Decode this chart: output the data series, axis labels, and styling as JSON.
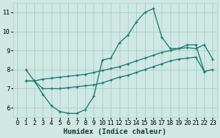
{
  "background_color": "#cfe8e3",
  "grid_color": "#aad0c8",
  "line_color": "#1a7a6e",
  "line1_x": [
    1,
    2,
    3,
    4,
    5,
    6,
    7,
    8,
    9,
    10,
    11,
    12,
    13,
    14,
    15,
    16,
    17,
    18,
    19,
    20,
    21,
    22
  ],
  "line1_y": [
    8.0,
    7.4,
    6.7,
    6.1,
    5.8,
    5.7,
    5.7,
    5.9,
    6.6,
    8.5,
    8.6,
    9.4,
    9.8,
    10.5,
    11.0,
    11.2,
    9.7,
    9.1,
    9.1,
    9.3,
    9.3,
    7.9
  ],
  "line2_x": [
    1,
    2,
    3,
    4,
    5,
    6,
    7,
    8,
    9,
    10,
    11,
    12,
    13,
    14,
    15,
    16,
    17,
    18,
    19,
    20,
    21,
    22,
    23
  ],
  "line2_y": [
    7.4,
    7.4,
    7.5,
    7.55,
    7.6,
    7.65,
    7.7,
    7.75,
    7.85,
    7.95,
    8.05,
    8.15,
    8.3,
    8.45,
    8.6,
    8.75,
    8.9,
    9.0,
    9.1,
    9.15,
    9.1,
    9.3,
    8.55
  ],
  "line3_x": [
    1,
    2,
    3,
    4,
    5,
    6,
    7,
    8,
    9,
    10,
    11,
    12,
    13,
    14,
    15,
    16,
    17,
    18,
    19,
    20,
    21,
    22,
    23
  ],
  "line3_y": [
    7.4,
    7.4,
    7.0,
    7.0,
    7.0,
    7.05,
    7.1,
    7.15,
    7.2,
    7.3,
    7.45,
    7.6,
    7.7,
    7.85,
    8.0,
    8.15,
    8.3,
    8.45,
    8.55,
    8.6,
    8.65,
    7.9,
    8.0
  ],
  "xlabel": "Humidex (Indice chaleur)",
  "xlabel_fontsize": 7.5,
  "tick_fontsize": 6.5,
  "xlim": [
    -0.5,
    23.5
  ],
  "ylim": [
    5.5,
    11.5
  ],
  "yticks": [
    6,
    7,
    8,
    9,
    10,
    11
  ],
  "xticks": [
    0,
    1,
    2,
    3,
    4,
    5,
    6,
    7,
    8,
    9,
    10,
    11,
    12,
    13,
    14,
    15,
    16,
    17,
    18,
    19,
    20,
    21,
    22,
    23
  ]
}
